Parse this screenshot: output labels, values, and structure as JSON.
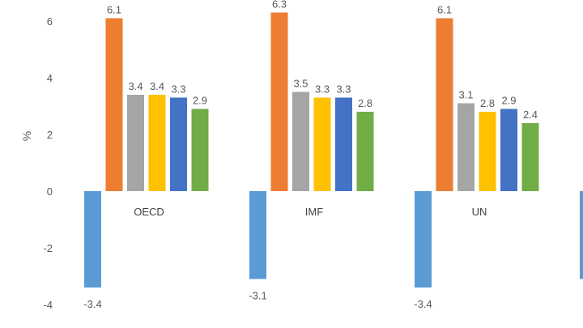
{
  "chart_data": {
    "type": "bar",
    "title": "",
    "xlabel": "",
    "ylabel": "%",
    "ylim": [
      -4,
      7
    ],
    "yticks": [
      -4,
      -2,
      0,
      2,
      4,
      6
    ],
    "grid": false,
    "legend": "none",
    "categories": [
      "OECD",
      "IMF",
      "UN"
    ],
    "series": [
      {
        "color": "#5b9bd5",
        "values": [
          -3.4,
          -3.1,
          -3.4
        ],
        "labels": [
          "-3.4",
          "-3.1",
          "-3.4"
        ]
      },
      {
        "color": "#ed7d31",
        "values": [
          6.1,
          6.3,
          6.1
        ],
        "labels": [
          "6.1",
          "6.3",
          "6.1"
        ]
      },
      {
        "color": "#a5a5a5",
        "values": [
          3.4,
          3.5,
          3.1
        ],
        "labels": [
          "3.4",
          "3.5",
          "3.1"
        ]
      },
      {
        "color": "#ffc000",
        "values": [
          3.4,
          3.3,
          2.8
        ],
        "labels": [
          "3.4",
          "3.3",
          "2.8"
        ]
      },
      {
        "color": "#4472c4",
        "values": [
          3.3,
          3.3,
          2.9
        ],
        "labels": [
          "3.3",
          "3.3",
          "2.9"
        ]
      },
      {
        "color": "#70ad47",
        "values": [
          2.9,
          2.8,
          2.4
        ],
        "labels": [
          "2.9",
          "2.8",
          "2.4"
        ]
      }
    ],
    "partial_next_group": {
      "visible_series": [
        0
      ],
      "values": [
        -3.1
      ]
    }
  }
}
